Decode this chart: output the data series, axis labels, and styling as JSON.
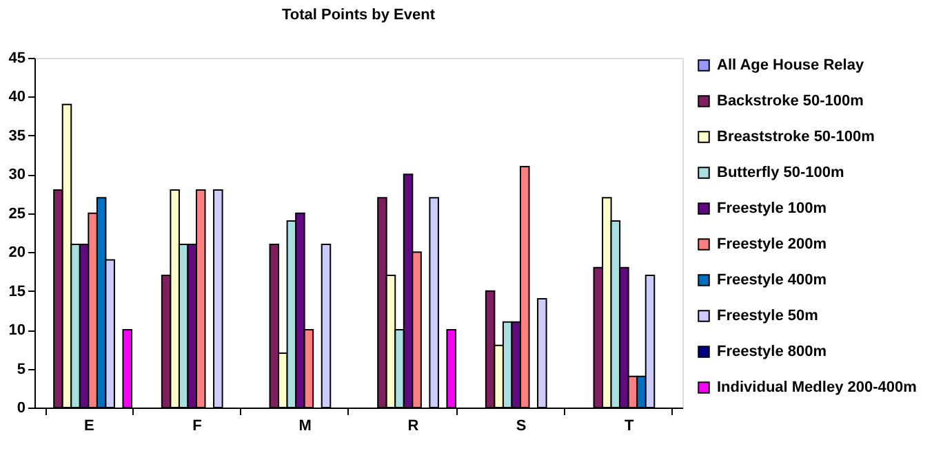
{
  "chart_data": {
    "type": "bar",
    "title": "Total Points by Event",
    "categories": [
      "E",
      "F",
      "M",
      "R",
      "S",
      "T"
    ],
    "series": [
      {
        "name": "All Age House Relay",
        "color": "#9999ff",
        "values": [
          null,
          null,
          null,
          null,
          null,
          null
        ]
      },
      {
        "name": "Backstroke 50-100m",
        "color": "#7f1f5f",
        "values": [
          28,
          17,
          21,
          27,
          15,
          18
        ]
      },
      {
        "name": "Breaststroke 50-100m",
        "color": "#ffffcc",
        "values": [
          39,
          28,
          7,
          17,
          8,
          27
        ]
      },
      {
        "name": "Butterfly 50-100m",
        "color": "#a8e0e0",
        "values": [
          21,
          21,
          24,
          10,
          11,
          24
        ]
      },
      {
        "name": "Freestyle 100m",
        "color": "#5f0a7f",
        "values": [
          21,
          21,
          25,
          30,
          11,
          18
        ]
      },
      {
        "name": "Freestyle 200m",
        "color": "#ff8080",
        "values": [
          25,
          28,
          10,
          20,
          31,
          4
        ]
      },
      {
        "name": "Freestyle 400m",
        "color": "#0070c0",
        "values": [
          27,
          null,
          null,
          null,
          null,
          4
        ]
      },
      {
        "name": "Freestyle 50m",
        "color": "#ccccff",
        "values": [
          19,
          28,
          21,
          27,
          14,
          17
        ]
      },
      {
        "name": "Freestyle 800m",
        "color": "#000080",
        "values": [
          null,
          null,
          null,
          null,
          null,
          null
        ]
      },
      {
        "name": "Individual Medley 200-400m",
        "color": "#ff00ff",
        "values": [
          10,
          null,
          null,
          10,
          null,
          null
        ]
      }
    ],
    "ylim": [
      0,
      45
    ],
    "yticks": [
      0,
      5,
      10,
      15,
      20,
      25,
      30,
      35,
      40,
      45
    ],
    "grid": false,
    "legend": "right"
  }
}
